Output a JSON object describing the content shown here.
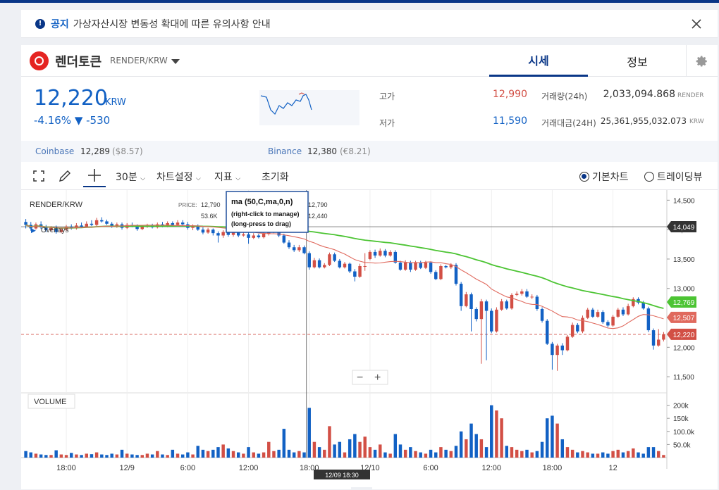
{
  "notice": {
    "tag": "공지",
    "message": "가상자산시장 변동성 확대에 따른 유의사항 안내"
  },
  "coin": {
    "name": "렌더토큰",
    "symbol": "RENDER/KRW"
  },
  "tabs": [
    {
      "label": "시세"
    },
    {
      "label": "정보"
    }
  ],
  "price": {
    "value": "12,220",
    "currency": "KRW",
    "change": "-4.16% ▼ -530"
  },
  "stats": {
    "high_label": "고가",
    "high": "12,990",
    "low_label": "저가",
    "low": "11,590",
    "vol_label": "거래량(24h)",
    "vol": "2,033,094.868",
    "vol_unit": "RENDER",
    "amt_label": "거래대금(24H)",
    "amt": "25,361,955,032.073",
    "amt_unit": "KRW"
  },
  "exchanges": [
    {
      "name": "Coinbase",
      "price": "12,289",
      "sub": "($8.57)"
    },
    {
      "name": "Binance",
      "price": "12,380",
      "sub": "(€8.21)"
    }
  ],
  "toolbar": {
    "interval": "30분",
    "chart_settings": "차트설정",
    "indicator": "지표",
    "reset": "초기화",
    "basic": "기본차트",
    "tradingview": "트레이딩뷰"
  },
  "chart_overlay": {
    "pair": "RENDER/KRW",
    "price_label": "PRICE:",
    "price_val": "12,790",
    "vol_val": "53.6K",
    "overlays": "Overlays",
    "tip_title": "ma (50,C,ma,0,n)",
    "tip_line1": "(right-click to manage)",
    "tip_line2": "(long-press to drag)",
    "p1": "12,790",
    "p2": "12,440",
    "volume_label": "VOLUME",
    "crosshair_time": "12/09 18:30"
  },
  "colors": {
    "up": "#d24f45",
    "down": "#1261c4",
    "ma_long": "#4cc433",
    "ma_short": "#e06a5e",
    "brand": "#093687"
  },
  "chart_data": {
    "type": "candlestick",
    "ylim": [
      11250,
      14600
    ],
    "y_ticks": [
      "14,500",
      "14,000",
      "13,500",
      "13,000",
      "12,500",
      "12,000",
      "11,500"
    ],
    "y_tick_values": [
      14500,
      14000,
      13500,
      13000,
      12500,
      12000,
      11500
    ],
    "vol_ticks": [
      "200k",
      "150k",
      "100.0k",
      "50.0k"
    ],
    "vol_tick_values": [
      200,
      150,
      100,
      50
    ],
    "x_ticks": [
      "18:00",
      "12/9",
      "6:00",
      "12:00",
      "18:00",
      "12/10",
      "6:00",
      "12:00",
      "18:00",
      "12"
    ],
    "x_tick_index": [
      8,
      20,
      32,
      44,
      56,
      68,
      80,
      92,
      104,
      116
    ],
    "price_tags": [
      {
        "label": "14,049",
        "value": 14049,
        "color": "#333333"
      },
      {
        "label": "12,769",
        "value": 12769,
        "color": "#4cc433"
      },
      {
        "label": "12,507",
        "value": 12507,
        "color": "#e06a5e"
      },
      {
        "label": "12,220",
        "value": 12220,
        "color": "#d24f45"
      }
    ],
    "candles": [
      {
        "o": 14130,
        "c": 14080,
        "h": 14180,
        "l": 14020,
        "v": 25
      },
      {
        "o": 14080,
        "c": 14020,
        "h": 14130,
        "l": 13980,
        "v": 20
      },
      {
        "o": 14020,
        "c": 14090,
        "h": 14120,
        "l": 14000,
        "v": 15
      },
      {
        "o": 14090,
        "c": 14040,
        "h": 14140,
        "l": 14010,
        "v": 12
      },
      {
        "o": 14040,
        "c": 13990,
        "h": 14080,
        "l": 13960,
        "v": 10
      },
      {
        "o": 13990,
        "c": 14030,
        "h": 14060,
        "l": 13970,
        "v": 10
      },
      {
        "o": 14030,
        "c": 13960,
        "h": 14070,
        "l": 13930,
        "v": 28
      },
      {
        "o": 13960,
        "c": 14000,
        "h": 14040,
        "l": 13940,
        "v": 12
      },
      {
        "o": 14000,
        "c": 14050,
        "h": 14080,
        "l": 13980,
        "v": 10
      },
      {
        "o": 14050,
        "c": 14020,
        "h": 14090,
        "l": 14000,
        "v": 18
      },
      {
        "o": 14020,
        "c": 14070,
        "h": 14110,
        "l": 14000,
        "v": 12
      },
      {
        "o": 14070,
        "c": 14050,
        "h": 14120,
        "l": 14030,
        "v": 10
      },
      {
        "o": 14050,
        "c": 14100,
        "h": 14140,
        "l": 14030,
        "v": 15
      },
      {
        "o": 14100,
        "c": 14080,
        "h": 14160,
        "l": 14060,
        "v": 13
      },
      {
        "o": 14080,
        "c": 14160,
        "h": 14200,
        "l": 14060,
        "v": 20
      },
      {
        "o": 14160,
        "c": 14140,
        "h": 14210,
        "l": 14120,
        "v": 12
      },
      {
        "o": 14140,
        "c": 14100,
        "h": 14170,
        "l": 14080,
        "v": 10
      },
      {
        "o": 14100,
        "c": 14060,
        "h": 14130,
        "l": 14030,
        "v": 15
      },
      {
        "o": 14060,
        "c": 14090,
        "h": 14120,
        "l": 14030,
        "v": 12
      },
      {
        "o": 14090,
        "c": 14030,
        "h": 14120,
        "l": 14000,
        "v": 30
      },
      {
        "o": 14030,
        "c": 14080,
        "h": 14110,
        "l": 14010,
        "v": 15
      },
      {
        "o": 14080,
        "c": 14060,
        "h": 14120,
        "l": 14040,
        "v": 12
      },
      {
        "o": 14060,
        "c": 14010,
        "h": 14090,
        "l": 13980,
        "v": 10
      },
      {
        "o": 14010,
        "c": 14050,
        "h": 14080,
        "l": 13990,
        "v": 10
      },
      {
        "o": 14050,
        "c": 14070,
        "h": 14100,
        "l": 14030,
        "v": 15
      },
      {
        "o": 14070,
        "c": 14040,
        "h": 14100,
        "l": 14020,
        "v": 12
      },
      {
        "o": 14040,
        "c": 14090,
        "h": 14120,
        "l": 14020,
        "v": 25
      },
      {
        "o": 14090,
        "c": 14060,
        "h": 14130,
        "l": 14040,
        "v": 12
      },
      {
        "o": 14060,
        "c": 14110,
        "h": 14140,
        "l": 14040,
        "v": 10
      },
      {
        "o": 14110,
        "c": 14080,
        "h": 14140,
        "l": 14060,
        "v": 30
      },
      {
        "o": 14080,
        "c": 14120,
        "h": 14160,
        "l": 14060,
        "v": 15
      },
      {
        "o": 14120,
        "c": 14090,
        "h": 14160,
        "l": 14070,
        "v": 12
      },
      {
        "o": 14090,
        "c": 14030,
        "h": 14130,
        "l": 14000,
        "v": 20
      },
      {
        "o": 14030,
        "c": 14060,
        "h": 14090,
        "l": 13990,
        "v": 12
      },
      {
        "o": 14060,
        "c": 14000,
        "h": 14090,
        "l": 13980,
        "v": 45
      },
      {
        "o": 14000,
        "c": 13950,
        "h": 14040,
        "l": 13920,
        "v": 30
      },
      {
        "o": 13950,
        "c": 14000,
        "h": 14030,
        "l": 13930,
        "v": 25
      },
      {
        "o": 14000,
        "c": 13940,
        "h": 14020,
        "l": 13900,
        "v": 30
      },
      {
        "o": 13940,
        "c": 13900,
        "h": 13970,
        "l": 13780,
        "v": 40
      },
      {
        "o": 13900,
        "c": 13960,
        "h": 13990,
        "l": 13860,
        "v": 50
      },
      {
        "o": 13960,
        "c": 13910,
        "h": 14000,
        "l": 13880,
        "v": 35
      },
      {
        "o": 13910,
        "c": 13950,
        "h": 13980,
        "l": 13880,
        "v": 25
      },
      {
        "o": 13950,
        "c": 13900,
        "h": 13990,
        "l": 13870,
        "v": 20
      },
      {
        "o": 13900,
        "c": 13920,
        "h": 13960,
        "l": 13880,
        "v": 15
      },
      {
        "o": 13920,
        "c": 13860,
        "h": 13950,
        "l": 13760,
        "v": 40
      },
      {
        "o": 13860,
        "c": 13900,
        "h": 13940,
        "l": 13840,
        "v": 20
      },
      {
        "o": 13900,
        "c": 13870,
        "h": 13930,
        "l": 13850,
        "v": 15
      },
      {
        "o": 13870,
        "c": 13930,
        "h": 13980,
        "l": 13850,
        "v": 20
      },
      {
        "o": 13930,
        "c": 13960,
        "h": 13990,
        "l": 13900,
        "v": 60
      },
      {
        "o": 13960,
        "c": 14000,
        "h": 14030,
        "l": 13940,
        "v": 25
      },
      {
        "o": 13990,
        "c": 13900,
        "h": 14010,
        "l": 13870,
        "v": 30
      },
      {
        "o": 13900,
        "c": 13780,
        "h": 13930,
        "l": 13760,
        "v": 110
      },
      {
        "o": 13780,
        "c": 13700,
        "h": 13820,
        "l": 13670,
        "v": 30
      },
      {
        "o": 13700,
        "c": 13650,
        "h": 13740,
        "l": 13620,
        "v": 20
      },
      {
        "o": 13650,
        "c": 13700,
        "h": 13740,
        "l": 13620,
        "v": 25
      },
      {
        "o": 13700,
        "c": 13600,
        "h": 13730,
        "l": 13580,
        "v": 20
      },
      {
        "o": 13600,
        "c": 13360,
        "h": 13630,
        "l": 13320,
        "v": 190
      },
      {
        "o": 13360,
        "c": 13480,
        "h": 13520,
        "l": 13340,
        "v": 60
      },
      {
        "o": 13480,
        "c": 13360,
        "h": 13510,
        "l": 13340,
        "v": 40
      },
      {
        "o": 13360,
        "c": 13400,
        "h": 13430,
        "l": 13340,
        "v": 30
      },
      {
        "o": 13400,
        "c": 13580,
        "h": 13610,
        "l": 13380,
        "v": 120
      },
      {
        "o": 13580,
        "c": 13470,
        "h": 13610,
        "l": 13450,
        "v": 50
      },
      {
        "o": 13470,
        "c": 13360,
        "h": 13500,
        "l": 13340,
        "v": 60
      },
      {
        "o": 13360,
        "c": 13420,
        "h": 13450,
        "l": 13340,
        "v": 20
      },
      {
        "o": 13420,
        "c": 13290,
        "h": 13440,
        "l": 13260,
        "v": 70
      },
      {
        "o": 13290,
        "c": 13200,
        "h": 13330,
        "l": 13120,
        "v": 90
      },
      {
        "o": 13200,
        "c": 13380,
        "h": 13420,
        "l": 13180,
        "v": 60
      },
      {
        "o": 13380,
        "c": 13380,
        "h": 13600,
        "l": 13300,
        "v": 80
      },
      {
        "o": 13500,
        "c": 13620,
        "h": 13650,
        "l": 13480,
        "v": 40
      },
      {
        "o": 13620,
        "c": 13560,
        "h": 13660,
        "l": 13520,
        "v": 30
      },
      {
        "o": 13560,
        "c": 13640,
        "h": 13680,
        "l": 13540,
        "v": 50
      },
      {
        "o": 13640,
        "c": 13560,
        "h": 13670,
        "l": 13530,
        "v": 20
      },
      {
        "o": 13560,
        "c": 13620,
        "h": 13650,
        "l": 13540,
        "v": 15
      },
      {
        "o": 13620,
        "c": 13440,
        "h": 13650,
        "l": 13420,
        "v": 90
      },
      {
        "o": 13440,
        "c": 13320,
        "h": 13470,
        "l": 13300,
        "v": 50
      },
      {
        "o": 13320,
        "c": 13440,
        "h": 13480,
        "l": 13300,
        "v": 30
      },
      {
        "o": 13440,
        "c": 13320,
        "h": 13470,
        "l": 13280,
        "v": 40
      },
      {
        "o": 13320,
        "c": 13440,
        "h": 13470,
        "l": 13300,
        "v": 25
      },
      {
        "o": 13440,
        "c": 13350,
        "h": 13470,
        "l": 13330,
        "v": 20
      },
      {
        "o": 13350,
        "c": 13440,
        "h": 13470,
        "l": 13330,
        "v": 15
      },
      {
        "o": 13440,
        "c": 13280,
        "h": 13460,
        "l": 13250,
        "v": 30
      },
      {
        "o": 13280,
        "c": 13160,
        "h": 13310,
        "l": 13140,
        "v": 20
      },
      {
        "o": 13160,
        "c": 13380,
        "h": 13410,
        "l": 13140,
        "v": 40
      },
      {
        "o": 13380,
        "c": 13360,
        "h": 13400,
        "l": 13340,
        "v": 30
      },
      {
        "o": 13360,
        "c": 13400,
        "h": 13430,
        "l": 13330,
        "v": 25
      },
      {
        "o": 13400,
        "c": 13080,
        "h": 13430,
        "l": 13050,
        "v": 45
      },
      {
        "o": 13080,
        "c": 12700,
        "h": 13110,
        "l": 12620,
        "v": 100
      },
      {
        "o": 12700,
        "c": 12900,
        "h": 12940,
        "l": 12680,
        "v": 70
      },
      {
        "o": 12900,
        "c": 12650,
        "h": 12930,
        "l": 12270,
        "v": 130
      },
      {
        "o": 12650,
        "c": 12480,
        "h": 12680,
        "l": 12440,
        "v": 90
      },
      {
        "o": 12480,
        "c": 12780,
        "h": 12820,
        "l": 11720,
        "v": 70
      },
      {
        "o": 12780,
        "c": 12620,
        "h": 12810,
        "l": 11780,
        "v": 40
      },
      {
        "o": 12620,
        "c": 12270,
        "h": 12660,
        "l": 12240,
        "v": 200
      },
      {
        "o": 12270,
        "c": 12640,
        "h": 12680,
        "l": 12250,
        "v": 180
      },
      {
        "o": 12640,
        "c": 12780,
        "h": 12820,
        "l": 12620,
        "v": 150
      },
      {
        "o": 12780,
        "c": 12660,
        "h": 12810,
        "l": 12640,
        "v": 45
      },
      {
        "o": 12660,
        "c": 12890,
        "h": 12920,
        "l": 12640,
        "v": 40
      },
      {
        "o": 12890,
        "c": 12910,
        "h": 12950,
        "l": 12870,
        "v": 30
      },
      {
        "o": 12910,
        "c": 12950,
        "h": 12990,
        "l": 12880,
        "v": 25
      },
      {
        "o": 12950,
        "c": 12860,
        "h": 12990,
        "l": 12840,
        "v": 30
      },
      {
        "o": 12860,
        "c": 12860,
        "h": 12900,
        "l": 12820,
        "v": 20
      },
      {
        "o": 12860,
        "c": 12650,
        "h": 12890,
        "l": 12620,
        "v": 25
      },
      {
        "o": 12650,
        "c": 12450,
        "h": 12680,
        "l": 12420,
        "v": 60
      },
      {
        "o": 12450,
        "c": 12060,
        "h": 12480,
        "l": 12040,
        "v": 150
      },
      {
        "o": 12060,
        "c": 11870,
        "h": 12090,
        "l": 11620,
        "v": 160
      },
      {
        "o": 11870,
        "c": 12030,
        "h": 12060,
        "l": 11600,
        "v": 130
      },
      {
        "o": 12030,
        "c": 11950,
        "h": 12070,
        "l": 11870,
        "v": 70
      },
      {
        "o": 11950,
        "c": 12180,
        "h": 12210,
        "l": 11930,
        "v": 40
      },
      {
        "o": 12180,
        "c": 12380,
        "h": 12420,
        "l": 12160,
        "v": 30
      },
      {
        "o": 12380,
        "c": 12270,
        "h": 12410,
        "l": 12240,
        "v": 20
      },
      {
        "o": 12270,
        "c": 12500,
        "h": 12540,
        "l": 12240,
        "v": 25
      },
      {
        "o": 12500,
        "c": 12640,
        "h": 12670,
        "l": 12480,
        "v": 20
      },
      {
        "o": 12640,
        "c": 12520,
        "h": 12670,
        "l": 12500,
        "v": 15
      },
      {
        "o": 12520,
        "c": 12600,
        "h": 12640,
        "l": 12500,
        "v": 15
      },
      {
        "o": 12600,
        "c": 12430,
        "h": 12630,
        "l": 12400,
        "v": 20
      },
      {
        "o": 12430,
        "c": 12370,
        "h": 12460,
        "l": 12340,
        "v": 15
      },
      {
        "o": 12370,
        "c": 12520,
        "h": 12550,
        "l": 12350,
        "v": 25
      },
      {
        "o": 12520,
        "c": 12640,
        "h": 12670,
        "l": 12500,
        "v": 30
      },
      {
        "o": 12640,
        "c": 12560,
        "h": 12680,
        "l": 12530,
        "v": 20
      },
      {
        "o": 12560,
        "c": 12700,
        "h": 12740,
        "l": 12540,
        "v": 25
      },
      {
        "o": 12700,
        "c": 12820,
        "h": 12850,
        "l": 12680,
        "v": 35
      },
      {
        "o": 12820,
        "c": 12760,
        "h": 12850,
        "l": 12730,
        "v": 20
      },
      {
        "o": 12760,
        "c": 12660,
        "h": 12790,
        "l": 12640,
        "v": 15
      },
      {
        "o": 12660,
        "c": 12290,
        "h": 12690,
        "l": 12260,
        "v": 40
      },
      {
        "o": 12290,
        "c": 12030,
        "h": 12320,
        "l": 11960,
        "v": 40
      },
      {
        "o": 12030,
        "c": 12130,
        "h": 12310,
        "l": 12010,
        "v": 25
      },
      {
        "o": 12130,
        "c": 12220,
        "h": 12260,
        "l": 12100,
        "v": 10
      }
    ]
  }
}
